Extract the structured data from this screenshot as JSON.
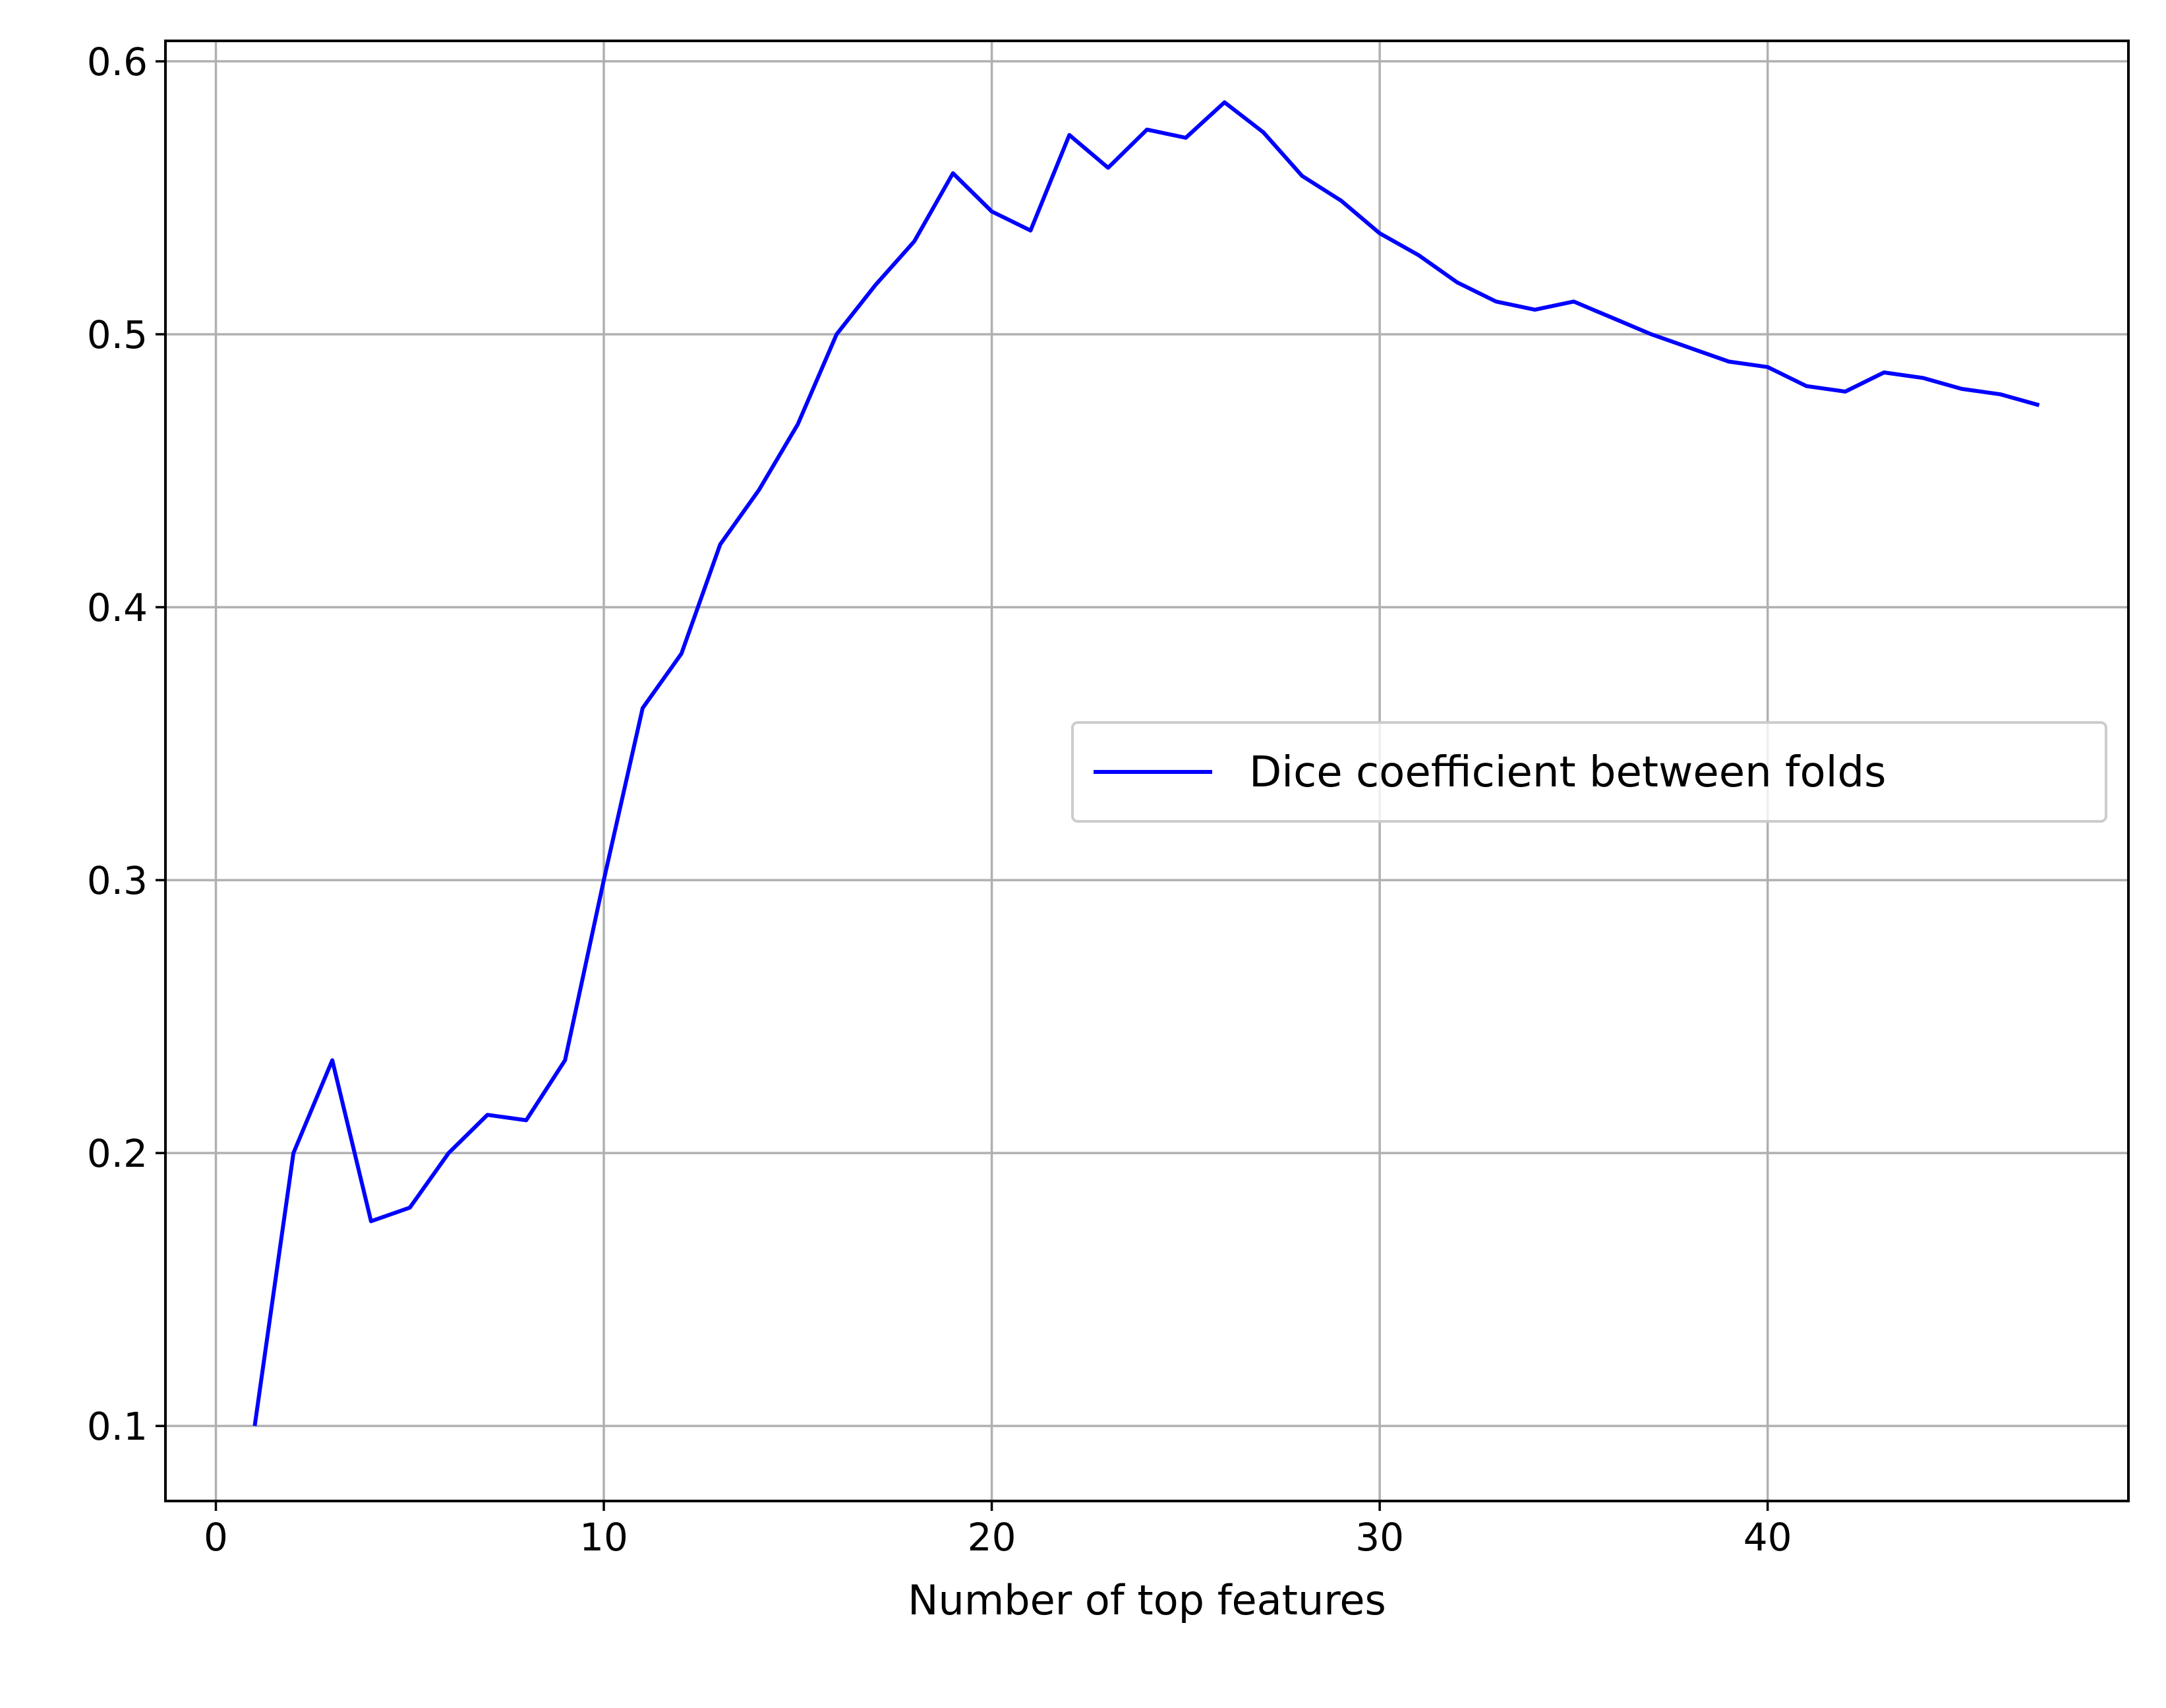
{
  "chart_data": {
    "type": "line",
    "title": "",
    "xlabel": "Number of top features",
    "ylabel": "",
    "xlim": [
      -1.3,
      49.3
    ],
    "ylim": [
      0.0725,
      0.6075
    ],
    "xticks": [
      0,
      10,
      20,
      30,
      40
    ],
    "xtick_labels": [
      "0",
      "10",
      "20",
      "30",
      "40"
    ],
    "yticks": [
      0.1,
      0.2,
      0.3,
      0.4,
      0.5,
      0.6
    ],
    "ytick_labels": [
      "0.1",
      "0.2",
      "0.3",
      "0.4",
      "0.5",
      "0.6"
    ],
    "grid": true,
    "legend_position": "center-right",
    "series": [
      {
        "name": "Dice coefficient between folds",
        "color": "#0000ff",
        "x": [
          1,
          2,
          3,
          4,
          5,
          6,
          7,
          8,
          9,
          10,
          11,
          12,
          13,
          14,
          15,
          16,
          17,
          18,
          19,
          20,
          21,
          22,
          23,
          24,
          25,
          26,
          27,
          28,
          29,
          30,
          31,
          32,
          33,
          34,
          35,
          36,
          37,
          38,
          39,
          40,
          41,
          42,
          43,
          44,
          45,
          46,
          47
        ],
        "y": [
          0.1,
          0.2,
          0.234,
          0.175,
          0.18,
          0.2,
          0.214,
          0.212,
          0.234,
          0.3,
          0.363,
          0.383,
          0.423,
          0.443,
          0.467,
          0.5,
          0.518,
          0.534,
          0.559,
          0.545,
          0.538,
          0.573,
          0.561,
          0.575,
          0.572,
          0.585,
          0.574,
          0.558,
          0.549,
          0.537,
          0.529,
          0.519,
          0.512,
          0.509,
          0.512,
          0.506,
          0.5,
          0.495,
          0.49,
          0.488,
          0.481,
          0.479,
          0.486,
          0.484,
          0.48,
          0.478,
          0.474
        ]
      }
    ]
  }
}
